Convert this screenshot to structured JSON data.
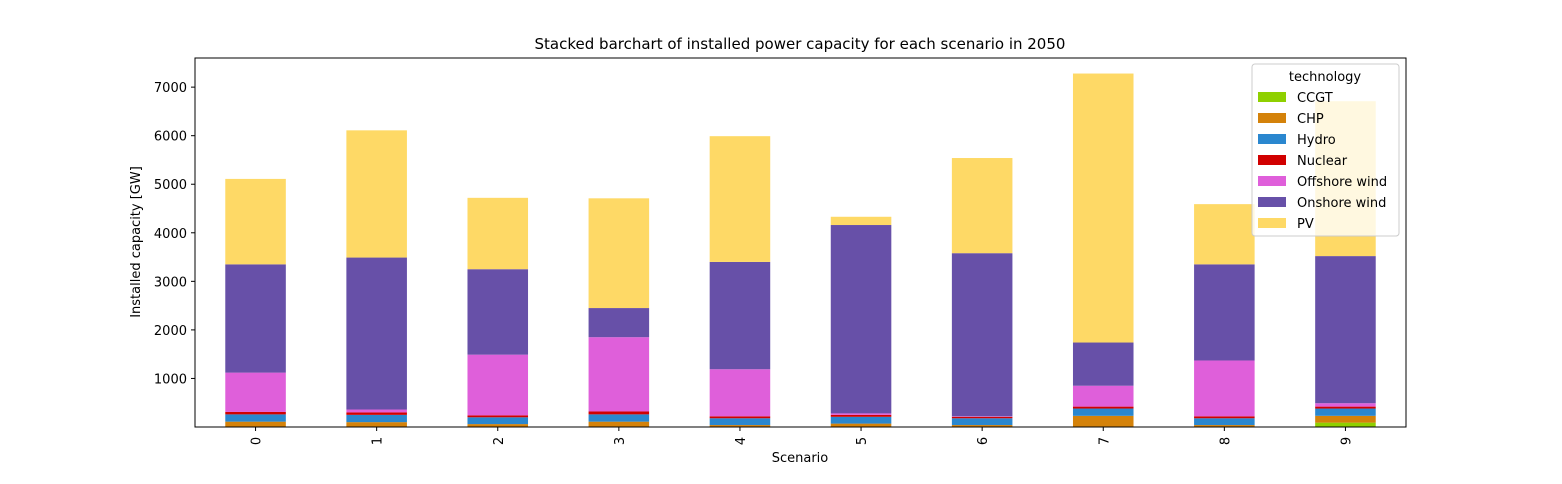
{
  "chart_data": {
    "type": "bar",
    "stacked": true,
    "title": "Stacked barchart of installed power capacity for each scenario in 2050",
    "xlabel": "Scenario",
    "ylabel": "Installed capacity [GW]",
    "ylim": [
      0,
      7600
    ],
    "yticks": [
      1000,
      2000,
      3000,
      4000,
      5000,
      6000,
      7000
    ],
    "grid": false,
    "legend_title": "technology",
    "legend_position": "top-right",
    "categories": [
      "0",
      "1",
      "2",
      "3",
      "4",
      "5",
      "6",
      "7",
      "8",
      "9"
    ],
    "series": [
      {
        "name": "CCGT",
        "color": "#8fd000",
        "values": [
          0,
          0,
          0,
          0,
          0,
          0,
          0,
          0,
          0,
          90
        ]
      },
      {
        "name": "CHP",
        "color": "#d4820a",
        "values": [
          110,
          100,
          60,
          110,
          40,
          70,
          40,
          230,
          40,
          140
        ]
      },
      {
        "name": "Hydro",
        "color": "#2a87cf",
        "values": [
          150,
          150,
          140,
          150,
          140,
          140,
          140,
          150,
          140,
          150
        ]
      },
      {
        "name": "Nuclear",
        "color": "#d10000",
        "values": [
          50,
          50,
          40,
          60,
          40,
          40,
          30,
          40,
          40,
          40
        ]
      },
      {
        "name": "Offshore wind",
        "color": "#df5fda",
        "values": [
          810,
          60,
          1250,
          1530,
          970,
          30,
          10,
          430,
          1150,
          70
        ]
      },
      {
        "name": "Onshore wind",
        "color": "#6750a8",
        "values": [
          2230,
          3130,
          1760,
          600,
          2210,
          3880,
          3360,
          890,
          1980,
          3030
        ]
      },
      {
        "name": "PV",
        "color": "#fed966",
        "values": [
          1760,
          2620,
          1470,
          2260,
          2590,
          170,
          1960,
          5540,
          1240,
          3190
        ]
      }
    ]
  }
}
